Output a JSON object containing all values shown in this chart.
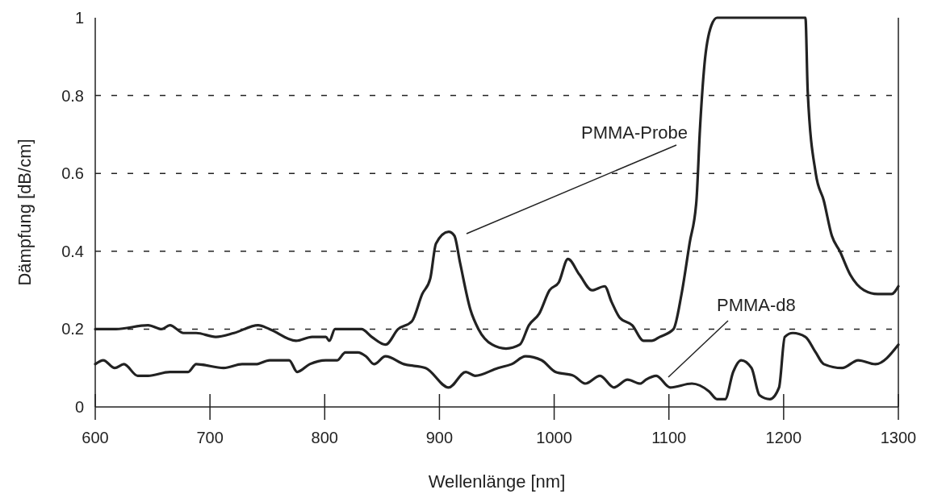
{
  "chart_data": {
    "type": "line",
    "xlabel": "Wellenlänge [nm]",
    "ylabel": "Dämpfung [dB/cm]",
    "xlim": [
      600,
      1300
    ],
    "xticks": [
      600,
      700,
      800,
      900,
      1000,
      1100,
      1200,
      1300
    ],
    "ylim": [
      0,
      1
    ],
    "yticks": [
      0,
      0.2,
      0.4,
      0.6,
      0.8,
      1
    ],
    "grid": "y",
    "line_style": "solid",
    "marker": "none",
    "series": [
      {
        "name": "PMMA-Probe",
        "color": "#222222",
        "x": [
          600,
          618,
          646,
          658,
          665,
          677,
          688,
          705,
          721,
          742,
          752,
          775,
          789,
          801,
          804,
          809,
          825,
          832,
          841,
          853,
          864,
          876,
          885,
          892,
          897,
          908,
          913,
          918,
          927,
          934,
          946,
          958,
          970,
          978,
          987,
          996,
          1004,
          1012,
          1022,
          1033,
          1044,
          1050,
          1057,
          1068,
          1078,
          1085,
          1092,
          1104,
          1111,
          1118,
          1124,
          1127,
          1131,
          1137,
          1142,
          1219,
          1221,
          1228,
          1235,
          1242,
          1249,
          1258,
          1270,
          1282,
          1294,
          1300
        ],
        "values": [
          0.2,
          0.2,
          0.21,
          0.2,
          0.21,
          0.19,
          0.19,
          0.18,
          0.19,
          0.21,
          0.2,
          0.17,
          0.18,
          0.18,
          0.17,
          0.2,
          0.2,
          0.2,
          0.18,
          0.16,
          0.2,
          0.22,
          0.29,
          0.33,
          0.42,
          0.45,
          0.44,
          0.37,
          0.25,
          0.2,
          0.16,
          0.15,
          0.16,
          0.21,
          0.24,
          0.3,
          0.32,
          0.38,
          0.34,
          0.3,
          0.31,
          0.27,
          0.23,
          0.21,
          0.17,
          0.17,
          0.18,
          0.2,
          0.29,
          0.42,
          0.53,
          0.71,
          0.88,
          0.98,
          1.0,
          1.0,
          0.81,
          0.6,
          0.53,
          0.44,
          0.4,
          0.34,
          0.3,
          0.29,
          0.29,
          0.31
        ]
      },
      {
        "name": "PMMA-d8",
        "color": "#222222",
        "x": [
          600,
          607,
          617,
          625,
          637,
          646,
          665,
          681,
          688,
          712,
          728,
          740,
          752,
          763,
          769,
          776,
          787,
          801,
          811,
          818,
          829,
          836,
          843,
          853,
          869,
          888,
          908,
          923,
          931,
          951,
          963,
          975,
          989,
          1001,
          1017,
          1027,
          1040,
          1052,
          1064,
          1075,
          1080,
          1089,
          1101,
          1120,
          1135,
          1142,
          1149,
          1156,
          1163,
          1172,
          1179,
          1188,
          1196,
          1201,
          1208,
          1219,
          1228,
          1235,
          1251,
          1265,
          1280,
          1300
        ],
        "values": [
          0.11,
          0.12,
          0.1,
          0.11,
          0.08,
          0.08,
          0.09,
          0.09,
          0.11,
          0.1,
          0.11,
          0.11,
          0.12,
          0.12,
          0.12,
          0.09,
          0.11,
          0.12,
          0.12,
          0.14,
          0.14,
          0.13,
          0.11,
          0.13,
          0.11,
          0.1,
          0.05,
          0.09,
          0.08,
          0.1,
          0.11,
          0.13,
          0.12,
          0.09,
          0.08,
          0.06,
          0.08,
          0.05,
          0.07,
          0.06,
          0.07,
          0.08,
          0.05,
          0.06,
          0.04,
          0.02,
          0.02,
          0.09,
          0.12,
          0.1,
          0.03,
          0.02,
          0.05,
          0.18,
          0.19,
          0.18,
          0.14,
          0.11,
          0.1,
          0.12,
          0.11,
          0.16
        ]
      }
    ]
  }
}
